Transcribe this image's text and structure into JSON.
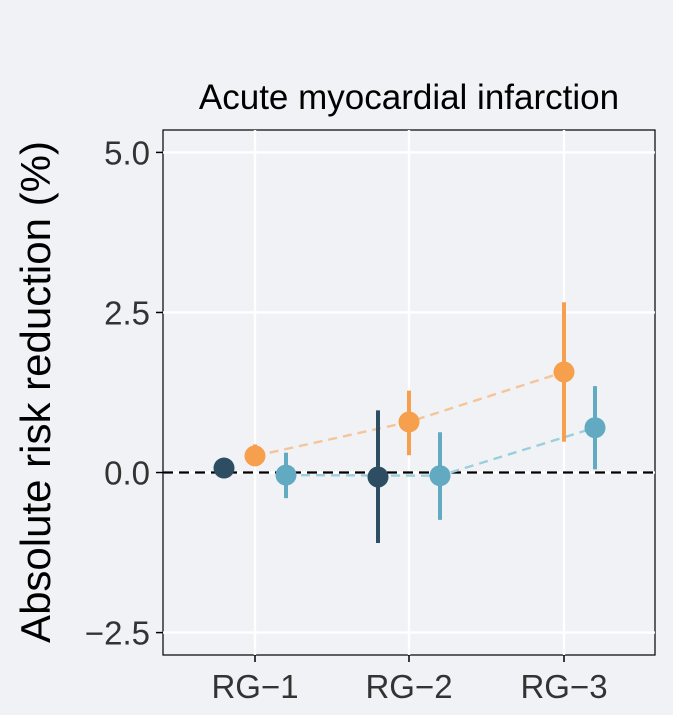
{
  "chart_data": {
    "type": "scatter",
    "title": "Acute myocardial infarction",
    "ylabel": "Absolute risk reduction (%)",
    "xlabel": "",
    "categories": [
      "RG−1",
      "RG−2",
      "RG−3"
    ],
    "ylim": [
      -2.85,
      5.35
    ],
    "yticks": [
      -2.5,
      0.0,
      2.5,
      5.0
    ],
    "ytick_labels": [
      "−2.5",
      "0.0",
      "2.5",
      "5.0"
    ],
    "reference_line": 0,
    "grid": true,
    "legend": "none",
    "series": [
      {
        "color": "#2d4e62",
        "points": [
          {
            "category": "RG−1",
            "y": 0.07,
            "lower": 0.07,
            "upper": 0.07
          },
          {
            "category": "RG−2",
            "y": -0.07,
            "lower": -1.1,
            "upper": 0.97
          }
        ]
      },
      {
        "color": "#f6a04d",
        "trend_color": "#f5c59a",
        "points": [
          {
            "category": "RG−1",
            "y": 0.26,
            "lower": 0.1,
            "upper": 0.44
          },
          {
            "category": "RG−2",
            "y": 0.79,
            "lower": 0.27,
            "upper": 1.28
          },
          {
            "category": "RG−3",
            "y": 1.57,
            "lower": 0.48,
            "upper": 2.66
          }
        ]
      },
      {
        "color": "#62a9c2",
        "trend_color": "#9ccfdc",
        "points": [
          {
            "category": "RG−1",
            "y": -0.04,
            "lower": -0.4,
            "upper": 0.31
          },
          {
            "category": "RG−2",
            "y": -0.05,
            "lower": -0.74,
            "upper": 0.63
          },
          {
            "category": "RG−3",
            "y": 0.7,
            "lower": 0.05,
            "upper": 1.35
          }
        ]
      }
    ]
  }
}
